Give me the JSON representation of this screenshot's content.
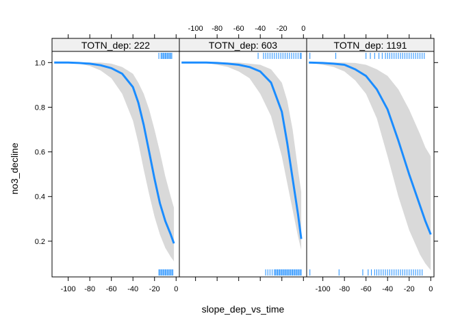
{
  "chart_data": {
    "type": "line",
    "xlabel": "slope_dep_vs_time",
    "ylabel": "no3_decline",
    "xlim": [
      -115,
      3
    ],
    "ylim": [
      0.04,
      1.05
    ],
    "x_ticks": [
      -100,
      -80,
      -60,
      -40,
      -20,
      0
    ],
    "y_ticks": [
      0.2,
      0.4,
      0.6,
      0.8,
      1.0
    ],
    "y_tick_labels": [
      "0.2",
      "0.4",
      "0.6",
      "0.8",
      "1.0"
    ],
    "colors": {
      "line": "#1a8cff",
      "band": "#d9d9d9",
      "strip": "#f0f0f0",
      "rug": "#1a8cff"
    },
    "panels": [
      {
        "label": "TOTN_dep: 222",
        "x": [
          -113,
          -100,
          -90,
          -80,
          -70,
          -60,
          -50,
          -40,
          -35,
          -30,
          -25,
          -20,
          -15,
          -10,
          -5,
          -2
        ],
        "y": [
          1.0,
          1.0,
          0.998,
          0.995,
          0.988,
          0.975,
          0.95,
          0.89,
          0.82,
          0.72,
          0.6,
          0.48,
          0.37,
          0.29,
          0.23,
          0.19
        ],
        "upper": [
          1.0,
          1.0,
          1.0,
          1.0,
          1.0,
          0.995,
          0.98,
          0.95,
          0.91,
          0.86,
          0.79,
          0.7,
          0.6,
          0.49,
          0.4,
          0.35
        ],
        "lower": [
          1.0,
          1.0,
          0.995,
          0.985,
          0.965,
          0.93,
          0.86,
          0.74,
          0.64,
          0.52,
          0.41,
          0.31,
          0.23,
          0.17,
          0.13,
          0.11
        ],
        "rug_top": [
          -16,
          -14,
          -13,
          -12,
          -11,
          -10,
          -9,
          -8,
          -7,
          -6,
          -5,
          -4
        ],
        "rug_bottom": [
          -16,
          -15,
          -14,
          -13,
          -12,
          -11,
          -10,
          -9,
          -8,
          -7,
          -6,
          -5,
          -4,
          -3
        ]
      },
      {
        "label": "TOTN_dep: 603",
        "x": [
          -113,
          -100,
          -90,
          -80,
          -70,
          -60,
          -50,
          -40,
          -30,
          -20,
          -15,
          -10,
          -5,
          -2
        ],
        "y": [
          1.0,
          1.0,
          1.0,
          0.998,
          0.995,
          0.99,
          0.98,
          0.96,
          0.91,
          0.78,
          0.64,
          0.48,
          0.32,
          0.21
        ],
        "upper": [
          1.0,
          1.0,
          1.0,
          1.0,
          1.0,
          1.0,
          0.995,
          0.99,
          0.97,
          0.91,
          0.83,
          0.7,
          0.52,
          0.42
        ],
        "lower": [
          1.0,
          1.0,
          0.998,
          0.99,
          0.98,
          0.96,
          0.93,
          0.86,
          0.76,
          0.58,
          0.46,
          0.34,
          0.22,
          0.16
        ],
        "rug_top": [
          -42,
          -37,
          -35,
          -33,
          -31,
          -29,
          -27,
          -25,
          -23,
          -21,
          -19,
          -17,
          -15,
          -13,
          -11,
          -9,
          -7,
          -5,
          -3,
          -2
        ],
        "rug_bottom": [
          -35,
          -33,
          -31,
          -29,
          -27,
          -26,
          -25,
          -24,
          -23,
          -22,
          -21,
          -20,
          -19,
          -18,
          -17,
          -16,
          -15,
          -14,
          -13,
          -12,
          -11,
          -10,
          -9,
          -8,
          -7,
          -6,
          -5,
          -4,
          -3,
          -2
        ]
      },
      {
        "label": "TOTN_dep: 1191",
        "x": [
          -113,
          -100,
          -90,
          -80,
          -70,
          -60,
          -50,
          -40,
          -30,
          -20,
          -10,
          -5,
          0
        ],
        "y": [
          1.0,
          0.998,
          0.995,
          0.99,
          0.97,
          0.94,
          0.88,
          0.79,
          0.65,
          0.5,
          0.36,
          0.29,
          0.23
        ],
        "upper": [
          1.0,
          1.0,
          1.0,
          1.0,
          0.998,
          0.99,
          0.97,
          0.94,
          0.88,
          0.79,
          0.68,
          0.62,
          0.58
        ],
        "lower": [
          1.0,
          0.99,
          0.98,
          0.96,
          0.92,
          0.86,
          0.75,
          0.58,
          0.4,
          0.25,
          0.14,
          0.1,
          0.07
        ],
        "rug_top": [
          -112,
          -88,
          -60,
          -56,
          -52,
          -48,
          -45,
          -42,
          -40,
          -38,
          -36,
          -34,
          -32,
          -30,
          -28,
          -26,
          -24,
          -22,
          -20,
          -18,
          -16,
          -14,
          -12,
          -10,
          -8,
          -6
        ],
        "rug_bottom": [
          -112,
          -85,
          -63,
          -58,
          -55,
          -52,
          -50,
          -48,
          -46,
          -44,
          -42,
          -40,
          -38,
          -36,
          -34,
          -32,
          -30,
          -28,
          -26,
          -24,
          -22,
          -20,
          -18,
          -16,
          -14,
          -12,
          -10,
          -8
        ]
      }
    ]
  }
}
